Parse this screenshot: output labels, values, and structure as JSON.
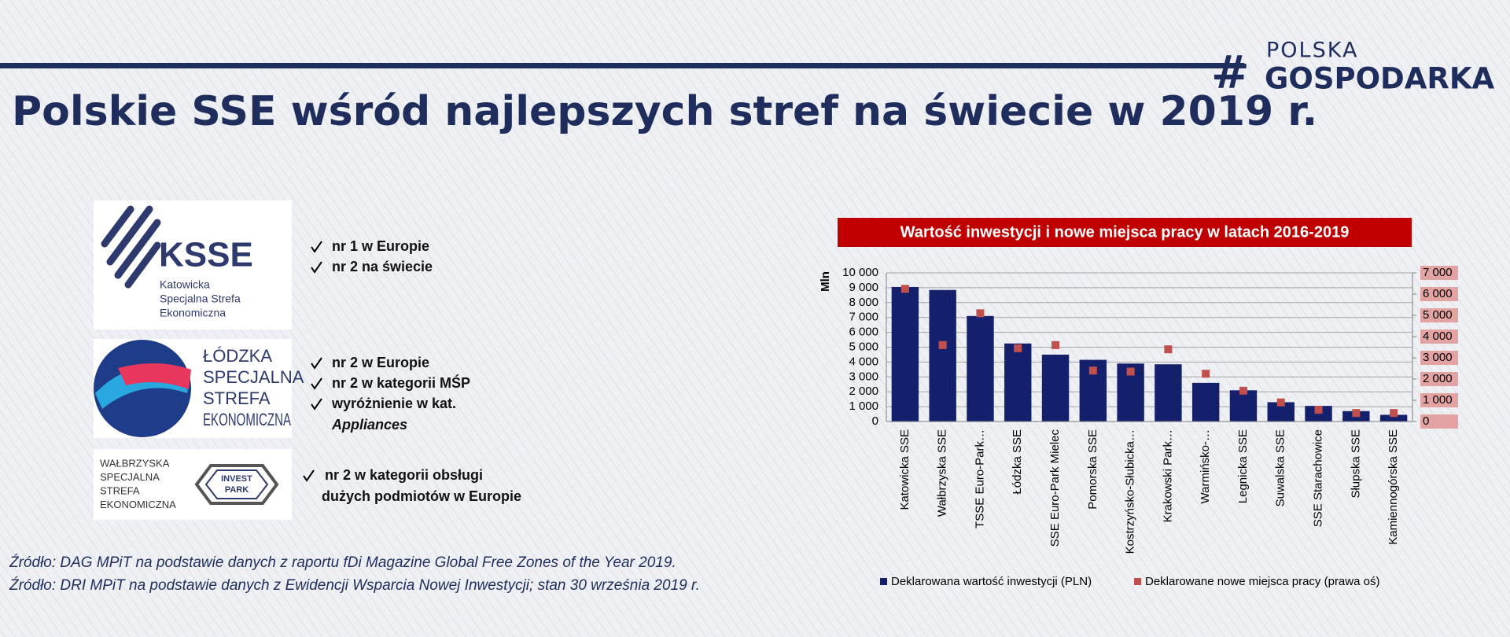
{
  "header": {
    "brand_mark": "#",
    "brand_top": "POLSKA",
    "brand_bottom": "GOSPODARKA",
    "title": "Polskie SSE wśród najlepszych stref na świecie w 2019 r."
  },
  "zones": [
    {
      "logo_name": "KSSE",
      "logo_lines": [
        "Katowicka",
        "Specjalna Strefa",
        "Ekonomiczna"
      ],
      "bullets": [
        {
          "lines": [
            "nr 1 w Europie"
          ]
        },
        {
          "lines": [
            "nr 2 na świecie"
          ]
        }
      ]
    },
    {
      "logo_lines": [
        "ŁÓDZKA",
        "SPECJALNA",
        "STREFA",
        "EKONOMICZNA"
      ],
      "bullets": [
        {
          "lines": [
            "nr 2 w Europie"
          ]
        },
        {
          "lines": [
            "nr 2 w kategorii MŚP"
          ]
        },
        {
          "lines": [
            "wyróżnienie w kat.",
            "Appliances"
          ],
          "italic_last": true
        }
      ]
    },
    {
      "logo_lines": [
        "WAŁBRZYSKA",
        "SPECJALNA",
        "STREFA",
        "EKONOMICZNA"
      ],
      "badge": [
        "INVEST",
        "PARK"
      ],
      "bullets": [
        {
          "lines": [
            "nr 2 w kategorii obsługi",
            "dużych podmiotów w Europie"
          ]
        }
      ]
    }
  ],
  "sources": [
    "Źródło: DAG MPiT na podstawie danych z raportu fDi Magazine Global Free Zones of the Year 2019.",
    "Źródło: DRI MPiT na podstawie danych z Ewidencji Wsparcia Nowej Inwestycji; stan 30 września 2019 r."
  ],
  "chart_data": {
    "type": "bar",
    "title": "Wartość inwestycji i nowe miejsca pracy w latach 2016-2019",
    "y_label": "Mln",
    "categories": [
      "Katowicka SSE",
      "Wałbrzyska SSE",
      "TSSE Euro-Park…",
      "Łódzka SSE",
      "SSE Euro-Park Mielec",
      "Pomorska SSE",
      "Kostrzyńsko-Słubicka…",
      "Krakowski Park…",
      "Warmińsko-…",
      "Legnicka SSE",
      "Suwalska SSE",
      "SSE Starachowice",
      "Słupska SSE",
      "Kamiennogórska SSE"
    ],
    "series": [
      {
        "name": "Deklarowana wartość inwestycji (PLN)",
        "color": "#14206b",
        "type": "bar",
        "values": [
          9050,
          8850,
          7100,
          5250,
          4500,
          4150,
          3900,
          3850,
          2600,
          2100,
          1300,
          1050,
          700,
          450
        ]
      },
      {
        "name": "Deklarowane nowe miejsca pracy (prawa oś)",
        "color": "#c0504d",
        "type": "scatter",
        "axis": "y2",
        "values": [
          6250,
          3600,
          5100,
          3450,
          3600,
          2400,
          2350,
          3400,
          2250,
          1450,
          900,
          550,
          400,
          400
        ]
      }
    ],
    "ylim": [
      0,
      10000
    ],
    "yticks": [
      0,
      {
        "value": 1000,
        "label": "1 000"
      },
      {
        "value": 2000,
        "label": "2 000"
      },
      {
        "value": 3000,
        "label": "3 000"
      },
      {
        "value": 4000,
        "label": "4 000"
      },
      {
        "value": 5000,
        "label": "5 000"
      },
      {
        "value": 6000,
        "label": "6 000"
      },
      {
        "value": 7000,
        "label": "7 000"
      },
      {
        "value": 8000,
        "label": "8 000"
      },
      {
        "value": 9000,
        "label": "9 000"
      },
      {
        "value": 10000,
        "label": "10 000"
      }
    ],
    "y2lim": [
      0,
      7000
    ],
    "y2ticks": [
      0,
      {
        "value": 1000,
        "label": "1 000"
      },
      {
        "value": 2000,
        "label": "2 000"
      },
      {
        "value": 3000,
        "label": "3 000"
      },
      {
        "value": 4000,
        "label": "4 000"
      },
      {
        "value": 5000,
        "label": "5 000"
      },
      {
        "value": 6000,
        "label": "6 000"
      },
      {
        "value": 7000,
        "label": "7 000"
      }
    ],
    "grid": true
  }
}
